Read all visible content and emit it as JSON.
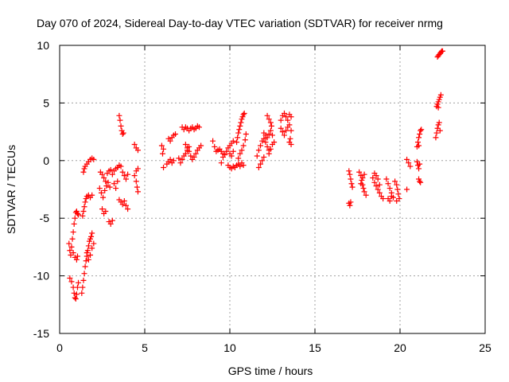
{
  "chart_data": {
    "type": "scatter",
    "title": "Day 070 of 2024, Sidereal Day-to-day VTEC variation (SDTVAR) for receiver nrmg",
    "xlabel": "GPS time / hours",
    "ylabel": "SDTVAR / TECUs",
    "xlim": [
      0,
      25
    ],
    "ylim": [
      -15,
      10
    ],
    "xticks": [
      "0",
      "5",
      "10",
      "15",
      "20",
      "25"
    ],
    "yticks": [
      "10",
      "5",
      "0",
      "-5",
      "-10",
      "-15"
    ],
    "grid": true,
    "marker": "+",
    "color": "#ff0000",
    "series": [
      {
        "points": [
          [
            0.55,
            -7.2
          ],
          [
            0.6,
            -7.8
          ],
          [
            0.65,
            -8.2
          ],
          [
            0.7,
            -7.5
          ],
          [
            0.75,
            -6.8
          ],
          [
            0.8,
            -6.2
          ],
          [
            0.85,
            -5.5
          ],
          [
            0.9,
            -5.0
          ],
          [
            0.95,
            -4.5
          ],
          [
            1.0,
            -4.4
          ],
          [
            1.05,
            -4.6
          ],
          [
            1.1,
            -4.7
          ],
          [
            0.6,
            -10.2
          ],
          [
            0.7,
            -10.5
          ],
          [
            0.8,
            -11.0
          ],
          [
            0.85,
            -11.5
          ],
          [
            0.9,
            -11.9
          ],
          [
            0.95,
            -12.0
          ],
          [
            1.0,
            -11.6
          ],
          [
            1.05,
            -11.0
          ],
          [
            1.1,
            -10.6
          ],
          [
            0.8,
            -8.0
          ],
          [
            0.9,
            -8.4
          ],
          [
            1.0,
            -8.6
          ],
          [
            1.05,
            -8.3
          ],
          [
            1.3,
            -11.5
          ],
          [
            1.35,
            -11.0
          ],
          [
            1.4,
            -10.4
          ],
          [
            1.45,
            -9.8
          ],
          [
            1.5,
            -9.2
          ],
          [
            1.55,
            -8.7
          ],
          [
            1.6,
            -8.3
          ],
          [
            1.65,
            -7.8
          ],
          [
            1.7,
            -7.4
          ],
          [
            1.75,
            -7.0
          ],
          [
            1.8,
            -6.8
          ],
          [
            1.85,
            -6.6
          ],
          [
            1.9,
            -6.3
          ],
          [
            1.35,
            -4.8
          ],
          [
            1.4,
            -4.4
          ],
          [
            1.45,
            -4.0
          ],
          [
            1.5,
            -3.6
          ],
          [
            1.55,
            -3.3
          ],
          [
            1.6,
            -3.1
          ],
          [
            1.7,
            -3.0
          ],
          [
            1.8,
            -3.2
          ],
          [
            1.9,
            -3.0
          ],
          [
            1.4,
            -1.0
          ],
          [
            1.45,
            -0.7
          ],
          [
            1.5,
            -0.5
          ],
          [
            1.6,
            -0.3
          ],
          [
            1.7,
            -0.1
          ],
          [
            1.8,
            0.1
          ],
          [
            1.9,
            0.2
          ],
          [
            2.0,
            0.1
          ],
          [
            1.6,
            -8.0
          ],
          [
            1.7,
            -8.6
          ],
          [
            1.8,
            -8.2
          ],
          [
            1.9,
            -7.6
          ],
          [
            2.0,
            -7.2
          ],
          [
            2.4,
            -1.0
          ],
          [
            2.5,
            -1.2
          ],
          [
            2.6,
            -1.5
          ],
          [
            2.7,
            -1.8
          ],
          [
            2.8,
            -1.1
          ],
          [
            2.9,
            -0.9
          ],
          [
            2.35,
            -2.4
          ],
          [
            2.45,
            -2.8
          ],
          [
            2.55,
            -3.2
          ],
          [
            2.65,
            -2.6
          ],
          [
            2.75,
            -2.2
          ],
          [
            2.85,
            -1.9
          ],
          [
            2.95,
            -2.3
          ],
          [
            2.5,
            -4.2
          ],
          [
            2.6,
            -4.6
          ],
          [
            2.7,
            -4.4
          ],
          [
            2.9,
            -5.3
          ],
          [
            3.0,
            -5.5
          ],
          [
            3.1,
            -5.2
          ],
          [
            3.0,
            -0.8
          ],
          [
            3.1,
            -1.2
          ],
          [
            3.2,
            -0.9
          ],
          [
            3.3,
            -0.7
          ],
          [
            3.4,
            -0.6
          ],
          [
            3.5,
            -0.4
          ],
          [
            3.6,
            -0.5
          ],
          [
            3.2,
            -2.0
          ],
          [
            3.3,
            -2.4
          ],
          [
            3.4,
            -1.8
          ],
          [
            3.5,
            3.9
          ],
          [
            3.55,
            3.5
          ],
          [
            3.6,
            3.0
          ],
          [
            3.65,
            2.6
          ],
          [
            3.7,
            2.3
          ],
          [
            3.75,
            2.4
          ],
          [
            3.5,
            -3.4
          ],
          [
            3.6,
            -3.6
          ],
          [
            3.7,
            -3.8
          ],
          [
            3.8,
            -3.5
          ],
          [
            3.9,
            -3.9
          ],
          [
            4.0,
            -4.2
          ],
          [
            3.7,
            -1.0
          ],
          [
            3.8,
            -1.3
          ],
          [
            3.9,
            -1.6
          ],
          [
            4.0,
            -1.2
          ],
          [
            4.4,
            1.4
          ],
          [
            4.5,
            1.1
          ],
          [
            4.6,
            0.9
          ],
          [
            4.4,
            -1.3
          ],
          [
            4.5,
            -1.8
          ],
          [
            4.55,
            -2.3
          ],
          [
            4.6,
            -2.7
          ],
          [
            4.5,
            -0.9
          ],
          [
            4.6,
            -0.7
          ],
          [
            6.0,
            1.3
          ],
          [
            6.1,
            1.0
          ],
          [
            6.05,
            0.6
          ],
          [
            6.1,
            -0.6
          ],
          [
            6.3,
            -0.3
          ],
          [
            6.4,
            -0.1
          ],
          [
            6.5,
            0.1
          ],
          [
            6.6,
            -0.2
          ],
          [
            6.7,
            0.0
          ],
          [
            6.4,
            1.9
          ],
          [
            6.5,
            1.7
          ],
          [
            6.6,
            2.0
          ],
          [
            6.7,
            2.2
          ],
          [
            6.8,
            2.3
          ],
          [
            7.0,
            0.2
          ],
          [
            7.1,
            -0.2
          ],
          [
            7.2,
            0.1
          ],
          [
            7.3,
            0.4
          ],
          [
            7.2,
            2.9
          ],
          [
            7.3,
            2.7
          ],
          [
            7.4,
            2.9
          ],
          [
            7.5,
            2.8
          ],
          [
            7.6,
            2.6
          ],
          [
            7.7,
            2.8
          ],
          [
            7.8,
            2.9
          ],
          [
            7.9,
            2.7
          ],
          [
            8.0,
            2.8
          ],
          [
            8.1,
            3.0
          ],
          [
            8.2,
            2.9
          ],
          [
            7.4,
            1.4
          ],
          [
            7.5,
            1.1
          ],
          [
            7.6,
            0.8
          ],
          [
            7.7,
            0.4
          ],
          [
            7.8,
            0.1
          ],
          [
            7.9,
            0.3
          ],
          [
            8.0,
            0.6
          ],
          [
            8.1,
            0.9
          ],
          [
            8.2,
            1.1
          ],
          [
            8.3,
            1.3
          ],
          [
            7.4,
            0.6
          ],
          [
            7.5,
            0.9
          ],
          [
            7.6,
            1.2
          ],
          [
            9.0,
            1.7
          ],
          [
            9.1,
            1.2
          ],
          [
            9.2,
            0.8
          ],
          [
            9.3,
            0.9
          ],
          [
            9.4,
            1.0
          ],
          [
            9.5,
            0.8
          ],
          [
            9.6,
            0.6
          ],
          [
            9.5,
            -0.2
          ],
          [
            9.6,
            0.3
          ],
          [
            9.7,
            0.5
          ],
          [
            9.8,
            0.8
          ],
          [
            9.9,
            1.1
          ],
          [
            10.0,
            1.3
          ],
          [
            10.1,
            1.5
          ],
          [
            10.2,
            1.7
          ],
          [
            9.9,
            -0.4
          ],
          [
            10.0,
            -0.6
          ],
          [
            10.1,
            -0.7
          ],
          [
            10.2,
            -0.5
          ],
          [
            10.3,
            -0.6
          ],
          [
            10.4,
            -0.4
          ],
          [
            10.5,
            -0.3
          ],
          [
            10.6,
            -0.5
          ],
          [
            10.7,
            -0.2
          ],
          [
            10.8,
            -0.4
          ],
          [
            10.0,
            0.6
          ],
          [
            10.1,
            0.4
          ],
          [
            10.2,
            0.8
          ],
          [
            10.4,
            1.6
          ],
          [
            10.45,
            2.0
          ],
          [
            10.5,
            2.4
          ],
          [
            10.55,
            2.7
          ],
          [
            10.6,
            3.0
          ],
          [
            10.65,
            3.3
          ],
          [
            10.7,
            3.6
          ],
          [
            10.75,
            3.8
          ],
          [
            10.8,
            4.0
          ],
          [
            10.85,
            4.1
          ],
          [
            10.5,
            0.2
          ],
          [
            10.6,
            0.6
          ],
          [
            10.7,
            0.9
          ],
          [
            10.8,
            1.3
          ],
          [
            10.9,
            1.8
          ],
          [
            10.95,
            2.3
          ],
          [
            11.6,
            0.4
          ],
          [
            11.7,
            0.9
          ],
          [
            11.8,
            1.3
          ],
          [
            11.9,
            1.7
          ],
          [
            12.0,
            1.9
          ],
          [
            12.1,
            1.6
          ],
          [
            12.2,
            1.2
          ],
          [
            12.3,
            0.9
          ],
          [
            11.7,
            -0.6
          ],
          [
            11.8,
            -0.3
          ],
          [
            11.9,
            0.0
          ],
          [
            12.0,
            0.3
          ],
          [
            12.0,
            2.4
          ],
          [
            12.1,
            2.2
          ],
          [
            12.2,
            2.0
          ],
          [
            12.3,
            2.3
          ],
          [
            12.4,
            2.6
          ],
          [
            12.5,
            2.2
          ],
          [
            12.2,
            3.9
          ],
          [
            12.3,
            3.6
          ],
          [
            12.4,
            3.3
          ],
          [
            12.45,
            3.0
          ],
          [
            12.3,
            0.6
          ],
          [
            12.4,
            1.0
          ],
          [
            12.5,
            1.4
          ],
          [
            12.6,
            1.6
          ],
          [
            13.0,
            3.5
          ],
          [
            13.1,
            3.9
          ],
          [
            13.2,
            4.1
          ],
          [
            13.3,
            3.8
          ],
          [
            13.4,
            3.5
          ],
          [
            13.5,
            4.0
          ],
          [
            13.6,
            3.8
          ],
          [
            13.0,
            2.8
          ],
          [
            13.1,
            2.5
          ],
          [
            13.2,
            2.2
          ],
          [
            13.3,
            2.6
          ],
          [
            13.4,
            2.9
          ],
          [
            13.5,
            3.1
          ],
          [
            13.6,
            2.6
          ],
          [
            13.5,
            1.6
          ],
          [
            13.55,
            1.9
          ],
          [
            13.6,
            1.4
          ],
          [
            17.0,
            -0.9
          ],
          [
            17.05,
            -1.2
          ],
          [
            17.1,
            -1.6
          ],
          [
            17.15,
            -2.0
          ],
          [
            17.2,
            -2.3
          ],
          [
            17.0,
            -3.7
          ],
          [
            17.05,
            -3.9
          ],
          [
            17.1,
            -3.6
          ],
          [
            17.6,
            -1.0
          ],
          [
            17.7,
            -1.3
          ],
          [
            17.75,
            -1.7
          ],
          [
            17.8,
            -2.1
          ],
          [
            17.85,
            -2.4
          ],
          [
            17.9,
            -2.7
          ],
          [
            18.0,
            -3.0
          ],
          [
            17.7,
            -2.0
          ],
          [
            17.8,
            -1.5
          ],
          [
            17.9,
            -1.2
          ],
          [
            18.4,
            -1.5
          ],
          [
            18.5,
            -1.9
          ],
          [
            18.6,
            -2.2
          ],
          [
            18.7,
            -2.5
          ],
          [
            18.8,
            -2.8
          ],
          [
            18.9,
            -3.1
          ],
          [
            19.0,
            -3.3
          ],
          [
            18.5,
            -1.1
          ],
          [
            18.6,
            -1.3
          ],
          [
            18.7,
            -1.6
          ],
          [
            18.8,
            -2.1
          ],
          [
            19.2,
            -1.6
          ],
          [
            19.3,
            -2.0
          ],
          [
            19.4,
            -2.4
          ],
          [
            19.5,
            -2.8
          ],
          [
            19.6,
            -3.2
          ],
          [
            19.3,
            -3.3
          ],
          [
            19.4,
            -3.5
          ],
          [
            19.5,
            -3.1
          ],
          [
            19.7,
            -1.8
          ],
          [
            19.8,
            -2.1
          ],
          [
            19.85,
            -2.5
          ],
          [
            19.9,
            -2.9
          ],
          [
            19.95,
            -3.3
          ],
          [
            19.8,
            -3.5
          ],
          [
            20.4,
            -2.5
          ],
          [
            20.4,
            0.1
          ],
          [
            20.5,
            -0.2
          ],
          [
            20.6,
            -0.5
          ],
          [
            21.0,
            -0.1
          ],
          [
            21.05,
            -0.4
          ],
          [
            21.1,
            -0.7
          ],
          [
            21.15,
            -0.3
          ],
          [
            21.0,
            1.2
          ],
          [
            21.05,
            1.6
          ],
          [
            21.1,
            2.0
          ],
          [
            21.15,
            2.3
          ],
          [
            21.2,
            2.6
          ],
          [
            21.25,
            2.7
          ],
          [
            21.1,
            1.3
          ],
          [
            21.1,
            -1.6
          ],
          [
            21.15,
            -1.8
          ],
          [
            21.2,
            -1.9
          ],
          [
            22.1,
            2.0
          ],
          [
            22.15,
            2.4
          ],
          [
            22.2,
            2.8
          ],
          [
            22.25,
            3.1
          ],
          [
            22.3,
            3.3
          ],
          [
            22.35,
            2.6
          ],
          [
            22.15,
            4.7
          ],
          [
            22.2,
            4.9
          ],
          [
            22.25,
            5.1
          ],
          [
            22.3,
            5.3
          ],
          [
            22.35,
            5.5
          ],
          [
            22.4,
            5.7
          ],
          [
            22.25,
            4.6
          ],
          [
            22.2,
            9.0
          ],
          [
            22.25,
            9.1
          ],
          [
            22.3,
            9.2
          ],
          [
            22.35,
            9.3
          ],
          [
            22.4,
            9.4
          ],
          [
            22.45,
            9.5
          ],
          [
            22.5,
            9.5
          ]
        ]
      }
    ]
  }
}
